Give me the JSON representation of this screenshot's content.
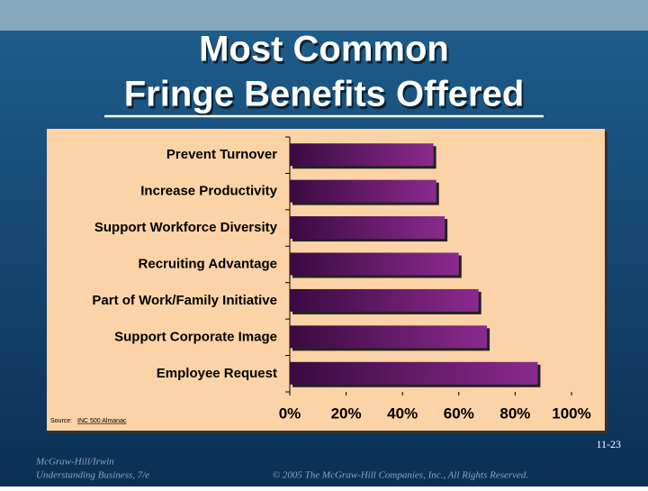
{
  "slide": {
    "title_lines": [
      "Most Common",
      "Fringe Benefits Offered"
    ],
    "page_number": "11-23",
    "publisher_lines": [
      "McGraw-Hill/Irwin",
      "Understanding Business, 7/e"
    ],
    "copyright": "© 2005 The McGraw-Hill Companies, Inc., All Rights Reserved."
  },
  "chart_data": {
    "type": "hbar",
    "categories": [
      "Prevent Turnover",
      "Increase Productivity",
      "Support Workforce Diversity",
      "Recruiting Advantage",
      "Part of Work/Family Initiative",
      "Support Corporate Image",
      "Employee Request"
    ],
    "values": [
      51,
      52,
      55,
      60,
      67,
      70,
      88
    ],
    "color": "#8a2a8e",
    "xlim": [
      0,
      100
    ],
    "xticks": [
      {
        "value": 0,
        "label": "0%"
      },
      {
        "value": 20,
        "label": "20%"
      },
      {
        "value": 40,
        "label": "40%"
      },
      {
        "value": 60,
        "label": "60%"
      },
      {
        "value": 80,
        "label": "80%"
      },
      {
        "value": 100,
        "label": "100%"
      }
    ],
    "source_prefix": "Source:",
    "source": "INC 500 Almanac"
  }
}
